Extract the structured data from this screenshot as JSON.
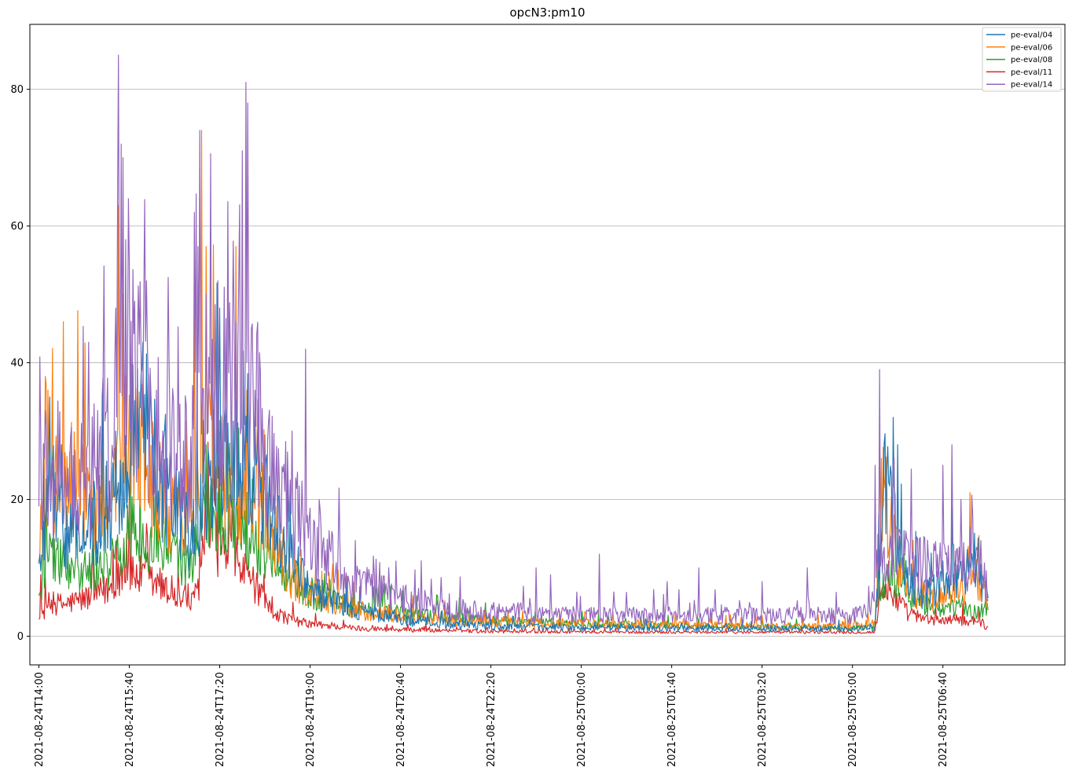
{
  "chart_data": {
    "type": "line",
    "title": "opcN3:pm10",
    "xlabel": "",
    "ylabel": "",
    "ylim": [
      -4.2,
      89.5
    ],
    "y_ticks": [
      0,
      20,
      40,
      60,
      80
    ],
    "x_range_minutes": [
      -10,
      1135
    ],
    "x_ticks": [
      {
        "label": "2021-08-24T14:00",
        "minute": 0
      },
      {
        "label": "2021-08-24T15:40",
        "minute": 100
      },
      {
        "label": "2021-08-24T17:20",
        "minute": 200
      },
      {
        "label": "2021-08-24T19:00",
        "minute": 300
      },
      {
        "label": "2021-08-24T20:40",
        "minute": 400
      },
      {
        "label": "2021-08-24T22:20",
        "minute": 500
      },
      {
        "label": "2021-08-25T00:00",
        "minute": 600
      },
      {
        "label": "2021-08-25T01:40",
        "minute": 700
      },
      {
        "label": "2021-08-25T03:20",
        "minute": 800
      },
      {
        "label": "2021-08-25T05:00",
        "minute": 900
      },
      {
        "label": "2021-08-25T06:40",
        "minute": 1000
      }
    ],
    "grid": "y",
    "legend_position": "top-right",
    "series": [
      {
        "name": "pe-eval/04",
        "color": "#1f77b4",
        "anchors": [
          [
            0,
            7
          ],
          [
            5,
            13
          ],
          [
            10,
            20
          ],
          [
            20,
            15
          ],
          [
            40,
            12
          ],
          [
            60,
            14
          ],
          [
            80,
            15
          ],
          [
            100,
            22
          ],
          [
            115,
            30
          ],
          [
            130,
            20
          ],
          [
            150,
            16
          ],
          [
            170,
            12
          ],
          [
            185,
            18
          ],
          [
            200,
            24
          ],
          [
            220,
            22
          ],
          [
            240,
            20
          ],
          [
            250,
            17
          ],
          [
            260,
            14
          ],
          [
            280,
            9
          ],
          [
            300,
            6
          ],
          [
            330,
            4
          ],
          [
            360,
            3
          ],
          [
            400,
            2
          ],
          [
            450,
            1.5
          ],
          [
            500,
            1.2
          ],
          [
            600,
            1
          ],
          [
            700,
            1
          ],
          [
            800,
            0.9
          ],
          [
            900,
            0.9
          ],
          [
            925,
            1
          ],
          [
            930,
            10
          ],
          [
            935,
            20
          ],
          [
            945,
            14
          ],
          [
            960,
            7
          ],
          [
            980,
            5
          ],
          [
            1000,
            6
          ],
          [
            1020,
            7
          ],
          [
            1040,
            8
          ],
          [
            1050,
            4
          ]
        ],
        "amp": 0.55,
        "spikes": [
          [
            5,
            28
          ],
          [
            12,
            35
          ],
          [
            25,
            28
          ],
          [
            85,
            30
          ],
          [
            102,
            36
          ],
          [
            115,
            43
          ],
          [
            175,
            40
          ],
          [
            200,
            48
          ],
          [
            240,
            25
          ],
          [
            260,
            20
          ],
          [
            945,
            32
          ],
          [
            950,
            28
          ],
          [
            1010,
            19
          ],
          [
            1045,
            8
          ]
        ]
      },
      {
        "name": "pe-eval/06",
        "color": "#ff7f0e",
        "anchors": [
          [
            0,
            10
          ],
          [
            5,
            15
          ],
          [
            10,
            20
          ],
          [
            25,
            18
          ],
          [
            40,
            20
          ],
          [
            60,
            15
          ],
          [
            80,
            18
          ],
          [
            100,
            25
          ],
          [
            115,
            22
          ],
          [
            130,
            18
          ],
          [
            150,
            14
          ],
          [
            170,
            16
          ],
          [
            185,
            25
          ],
          [
            200,
            20
          ],
          [
            220,
            18
          ],
          [
            240,
            16
          ],
          [
            250,
            15
          ],
          [
            260,
            12
          ],
          [
            280,
            7
          ],
          [
            300,
            5
          ],
          [
            330,
            4
          ],
          [
            360,
            3
          ],
          [
            400,
            2.5
          ],
          [
            450,
            2
          ],
          [
            500,
            1.8
          ],
          [
            600,
            1.5
          ],
          [
            700,
            1.4
          ],
          [
            800,
            1.2
          ],
          [
            900,
            1.2
          ],
          [
            925,
            1.5
          ],
          [
            930,
            15
          ],
          [
            935,
            18
          ],
          [
            945,
            12
          ],
          [
            960,
            6
          ],
          [
            980,
            5
          ],
          [
            1000,
            5
          ],
          [
            1020,
            6
          ],
          [
            1040,
            7
          ],
          [
            1050,
            3
          ]
        ],
        "amp": 0.55,
        "spikes": [
          [
            7,
            38
          ],
          [
            10,
            36
          ],
          [
            27,
            46
          ],
          [
            88,
            63
          ],
          [
            93,
            50
          ],
          [
            104,
            38
          ],
          [
            120,
            25
          ],
          [
            172,
            55
          ],
          [
            180,
            74
          ],
          [
            185,
            57
          ],
          [
            218,
            57
          ],
          [
            230,
            36
          ],
          [
            245,
            24
          ],
          [
            930,
            30
          ],
          [
            935,
            23
          ],
          [
            1030,
            21
          ]
        ]
      },
      {
        "name": "pe-eval/08",
        "color": "#2ca02c",
        "anchors": [
          [
            0,
            4
          ],
          [
            5,
            8
          ],
          [
            10,
            10
          ],
          [
            30,
            9
          ],
          [
            60,
            8
          ],
          [
            90,
            10
          ],
          [
            100,
            14
          ],
          [
            120,
            12
          ],
          [
            150,
            10
          ],
          [
            170,
            9
          ],
          [
            180,
            16
          ],
          [
            200,
            15
          ],
          [
            220,
            14
          ],
          [
            240,
            11
          ],
          [
            260,
            10
          ],
          [
            280,
            7
          ],
          [
            300,
            5
          ],
          [
            330,
            4
          ],
          [
            360,
            3.5
          ],
          [
            400,
            3
          ],
          [
            450,
            2.5
          ],
          [
            500,
            2
          ],
          [
            600,
            1.5
          ],
          [
            700,
            1.3
          ],
          [
            800,
            1.2
          ],
          [
            900,
            1
          ],
          [
            925,
            1.2
          ],
          [
            930,
            6
          ],
          [
            940,
            8
          ],
          [
            960,
            5
          ],
          [
            980,
            4
          ],
          [
            1000,
            3.5
          ],
          [
            1020,
            3.5
          ],
          [
            1040,
            3
          ],
          [
            1050,
            4
          ]
        ],
        "amp": 0.45,
        "spikes": [
          [
            8,
            23
          ],
          [
            12,
            15
          ],
          [
            105,
            20
          ],
          [
            182,
            22
          ],
          [
            185,
            28
          ],
          [
            200,
            28
          ],
          [
            210,
            24
          ],
          [
            945,
            13
          ]
        ]
      },
      {
        "name": "pe-eval/11",
        "color": "#d62728",
        "anchors": [
          [
            0,
            2
          ],
          [
            10,
            4
          ],
          [
            30,
            4
          ],
          [
            60,
            5
          ],
          [
            80,
            6
          ],
          [
            90,
            8
          ],
          [
            100,
            8
          ],
          [
            120,
            7
          ],
          [
            150,
            5
          ],
          [
            170,
            4
          ],
          [
            180,
            8
          ],
          [
            190,
            14
          ],
          [
            200,
            11
          ],
          [
            220,
            9
          ],
          [
            240,
            6
          ],
          [
            250,
            4
          ],
          [
            260,
            3
          ],
          [
            280,
            2
          ],
          [
            300,
            1.5
          ],
          [
            350,
            1
          ],
          [
            400,
            0.8
          ],
          [
            500,
            0.6
          ],
          [
            600,
            0.5
          ],
          [
            700,
            0.5
          ],
          [
            800,
            0.5
          ],
          [
            900,
            0.5
          ],
          [
            925,
            0.5
          ],
          [
            930,
            5
          ],
          [
            940,
            6
          ],
          [
            960,
            3
          ],
          [
            980,
            2
          ],
          [
            1000,
            2
          ],
          [
            1020,
            2
          ],
          [
            1040,
            2
          ],
          [
            1050,
            1
          ]
        ],
        "amp": 0.5,
        "spikes": [
          [
            2,
            9
          ],
          [
            97,
            15
          ],
          [
            100,
            20
          ],
          [
            185,
            22
          ],
          [
            200,
            16
          ],
          [
            205,
            12
          ],
          [
            940,
            11
          ],
          [
            1040,
            4
          ]
        ]
      },
      {
        "name": "pe-eval/14",
        "color": "#9467bd",
        "anchors": [
          [
            0,
            15
          ],
          [
            5,
            18
          ],
          [
            10,
            20
          ],
          [
            20,
            16
          ],
          [
            40,
            18
          ],
          [
            60,
            20
          ],
          [
            80,
            24
          ],
          [
            90,
            30
          ],
          [
            100,
            32
          ],
          [
            120,
            28
          ],
          [
            140,
            24
          ],
          [
            160,
            22
          ],
          [
            170,
            24
          ],
          [
            180,
            30
          ],
          [
            190,
            32
          ],
          [
            200,
            30
          ],
          [
            220,
            30
          ],
          [
            240,
            28
          ],
          [
            250,
            22
          ],
          [
            260,
            20
          ],
          [
            280,
            15
          ],
          [
            300,
            12
          ],
          [
            320,
            10
          ],
          [
            340,
            7
          ],
          [
            360,
            6
          ],
          [
            400,
            4.5
          ],
          [
            450,
            3.5
          ],
          [
            500,
            3
          ],
          [
            600,
            2.5
          ],
          [
            700,
            2.5
          ],
          [
            800,
            2.5
          ],
          [
            850,
            2.5
          ],
          [
            900,
            2.5
          ],
          [
            920,
            3
          ],
          [
            930,
            8
          ],
          [
            945,
            10
          ],
          [
            960,
            9
          ],
          [
            980,
            9
          ],
          [
            1000,
            10
          ],
          [
            1020,
            8
          ],
          [
            1040,
            8
          ],
          [
            1050,
            6
          ]
        ],
        "amp": 0.6,
        "spikes": [
          [
            2,
            30
          ],
          [
            7,
            33
          ],
          [
            55,
            43
          ],
          [
            85,
            48
          ],
          [
            87,
            64
          ],
          [
            88,
            85
          ],
          [
            91,
            72
          ],
          [
            93,
            70
          ],
          [
            96,
            58
          ],
          [
            99,
            64
          ],
          [
            100,
            55
          ],
          [
            106,
            49
          ],
          [
            115,
            37
          ],
          [
            130,
            36
          ],
          [
            172,
            62
          ],
          [
            176,
            57
          ],
          [
            185,
            50
          ],
          [
            198,
            52
          ],
          [
            218,
            46
          ],
          [
            225,
            71
          ],
          [
            229,
            81
          ],
          [
            231,
            78
          ],
          [
            235,
            45
          ],
          [
            280,
            30
          ],
          [
            295,
            42
          ],
          [
            310,
            20
          ],
          [
            350,
            14
          ],
          [
            395,
            11
          ],
          [
            550,
            10
          ],
          [
            566,
            9
          ],
          [
            620,
            12
          ],
          [
            695,
            8
          ],
          [
            730,
            10
          ],
          [
            800,
            8
          ],
          [
            850,
            10
          ],
          [
            925,
            25
          ],
          [
            930,
            39
          ],
          [
            945,
            25
          ],
          [
            1000,
            25
          ],
          [
            1010,
            28
          ],
          [
            1020,
            20
          ],
          [
            1030,
            16
          ],
          [
            1042,
            14
          ]
        ]
      }
    ]
  }
}
